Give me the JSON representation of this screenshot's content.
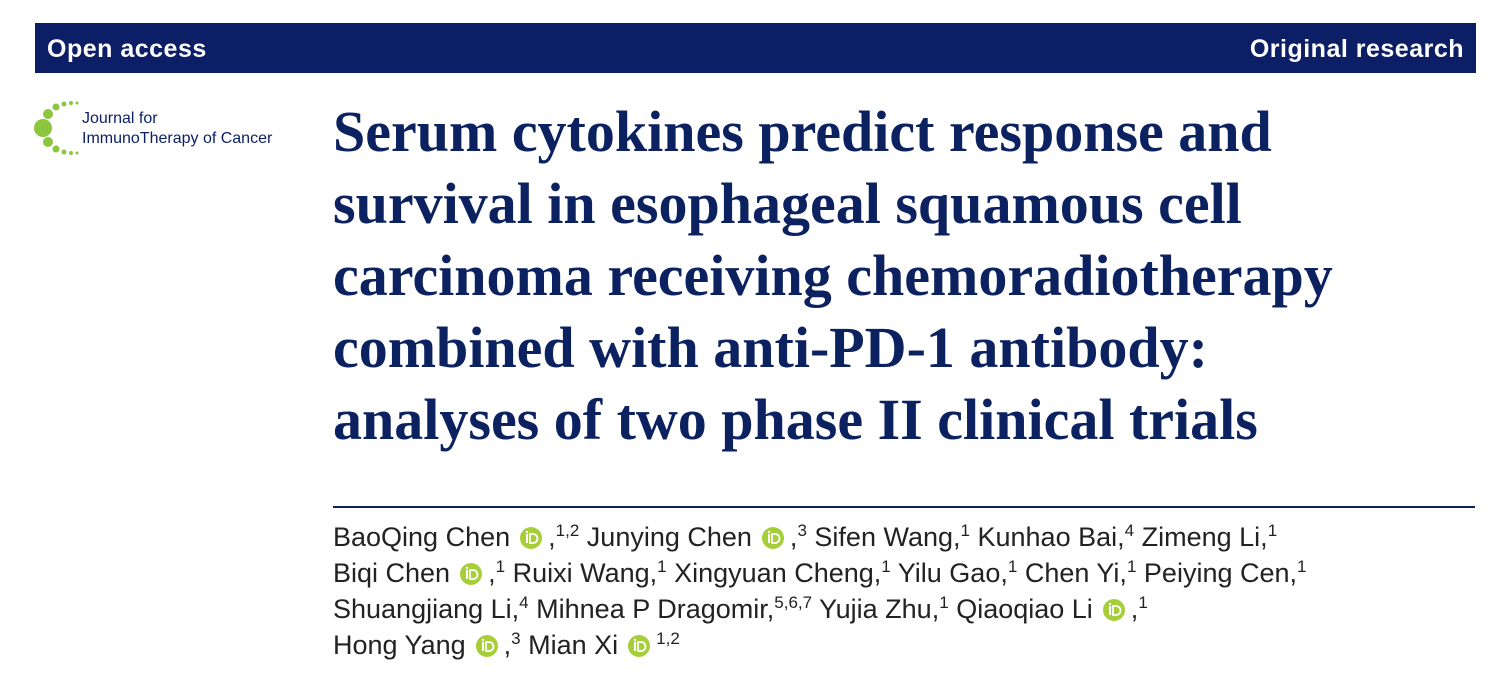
{
  "header": {
    "left": "Open access",
    "right": "Original research"
  },
  "journal": {
    "line1": "Journal for",
    "line2": "ImmunoTherapy of Cancer"
  },
  "title": {
    "lines": [
      "Serum cytokines predict response and",
      "survival in esophageal squamous cell",
      "carcinoma receiving chemoradiotherapy",
      "combined with anti-PD-1 antibody:",
      "analyses of two phase II clinical trials"
    ]
  },
  "authors": {
    "lines": [
      [
        {
          "name": "BaoQing Chen",
          "orcid": true,
          "sep": ",",
          "affil": "1,2"
        },
        {
          "name": "Junying Chen",
          "orcid": true,
          "sep": ",",
          "affil": "3"
        },
        {
          "name": "Sifen Wang",
          "orcid": false,
          "sep": ",",
          "affil": "1"
        },
        {
          "name": "Kunhao Bai",
          "orcid": false,
          "sep": ",",
          "affil": "4"
        },
        {
          "name": "Zimeng Li",
          "orcid": false,
          "sep": ",",
          "affil": "1"
        }
      ],
      [
        {
          "name": "Biqi Chen",
          "orcid": true,
          "sep": ",",
          "affil": "1"
        },
        {
          "name": "Ruixi Wang",
          "orcid": false,
          "sep": ",",
          "affil": "1"
        },
        {
          "name": "Xingyuan Cheng",
          "orcid": false,
          "sep": ",",
          "affil": "1"
        },
        {
          "name": "Yilu Gao",
          "orcid": false,
          "sep": ",",
          "affil": "1"
        },
        {
          "name": "Chen Yi",
          "orcid": false,
          "sep": ",",
          "affil": "1"
        },
        {
          "name": "Peiying Cen",
          "orcid": false,
          "sep": ",",
          "affil": "1"
        }
      ],
      [
        {
          "name": "Shuangjiang Li",
          "orcid": false,
          "sep": ",",
          "affil": "4"
        },
        {
          "name": "Mihnea P Dragomir",
          "orcid": false,
          "sep": ",",
          "affil": "5,6,7"
        },
        {
          "name": "Yujia Zhu",
          "orcid": false,
          "sep": ",",
          "affil": "1"
        },
        {
          "name": "Qiaoqiao Li",
          "orcid": true,
          "sep": ",",
          "affil": "1"
        }
      ],
      [
        {
          "name": "Hong Yang",
          "orcid": true,
          "sep": ",",
          "affil": "3"
        },
        {
          "name": "Mian Xi",
          "orcid": true,
          "affil": "1,2"
        }
      ]
    ]
  }
}
